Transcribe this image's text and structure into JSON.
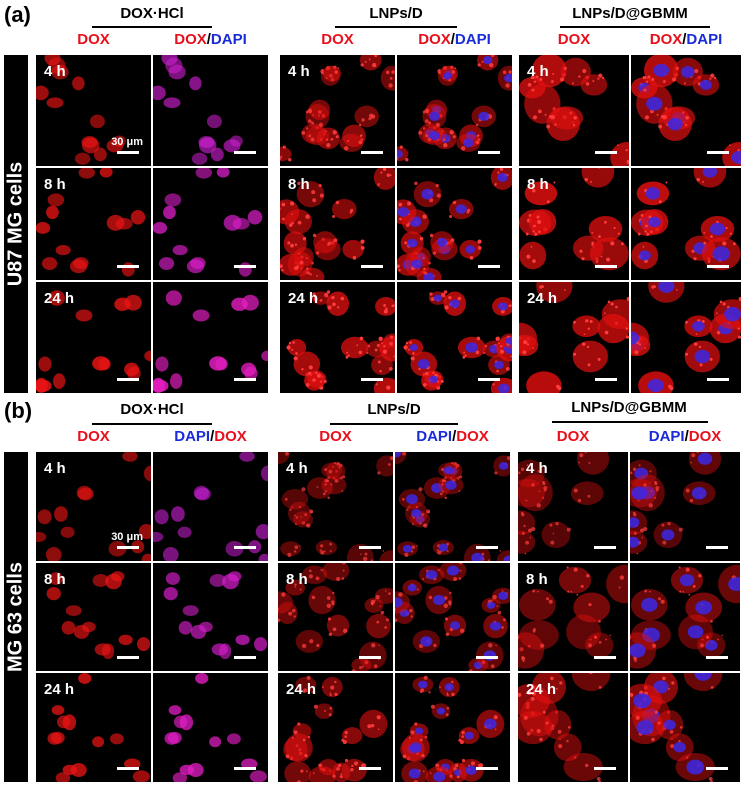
{
  "panels": [
    {
      "label": "(a)",
      "cell_line": "U87 MG cells",
      "scale_bar": "30 μm",
      "groups": [
        {
          "title": "DOX·HCl",
          "channels": [
            "DOX",
            "DOX/DAPI"
          ]
        },
        {
          "title": "LNPs/D",
          "channels": [
            "DOX",
            "DOX/DAPI"
          ]
        },
        {
          "title": "LNPs/D@GBMM",
          "channels": [
            "DOX",
            "DOX/DAPI"
          ]
        }
      ],
      "timepoints": [
        "4 h",
        "8 h",
        "24 h"
      ]
    },
    {
      "label": "(b)",
      "cell_line": "MG 63 cells",
      "scale_bar": "30 μm",
      "groups": [
        {
          "title": "DOX·HCl",
          "channels": [
            "DOX",
            "DAPI/DOX"
          ]
        },
        {
          "title": "LNPs/D",
          "channels": [
            "DOX",
            "DAPI/DOX"
          ]
        },
        {
          "title": "LNPs/D@GBMM",
          "channels": [
            "DOX",
            "DAPI/DOX"
          ]
        }
      ],
      "timepoints": [
        "4 h",
        "8 h",
        "24 h"
      ]
    }
  ],
  "colors": {
    "dox": "#e8101c",
    "dapi": "#1a2bd8"
  }
}
